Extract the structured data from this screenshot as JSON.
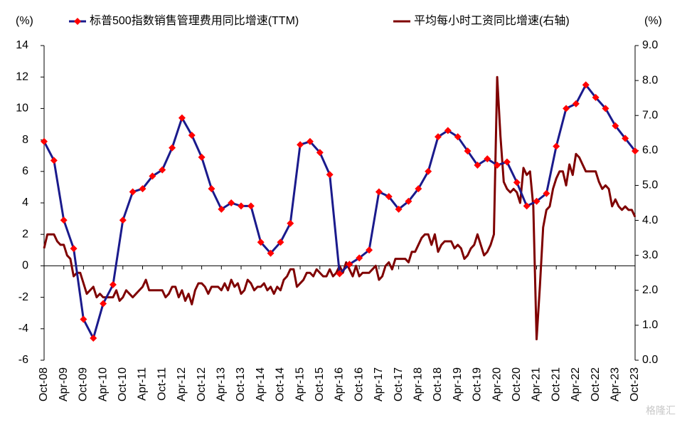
{
  "chart_data": {
    "type": "line",
    "y_label": "(%)",
    "y2_label": "(%)",
    "ylim": [
      -6,
      14
    ],
    "yticks": [
      -6,
      -4,
      -2,
      0,
      2,
      4,
      6,
      8,
      10,
      12,
      14
    ],
    "y2lim": [
      0,
      9
    ],
    "y2ticks": [
      {
        "value": 0,
        "label": "0.0"
      },
      {
        "value": 1,
        "label": "1.0"
      },
      {
        "value": 2,
        "label": "2.0"
      },
      {
        "value": 3,
        "label": "3.0"
      },
      {
        "value": 4,
        "label": "4.0"
      },
      {
        "value": 5,
        "label": "5.0"
      },
      {
        "value": 6,
        "label": "6.0"
      },
      {
        "value": 7,
        "label": "7.0"
      },
      {
        "value": 8,
        "label": "8.0"
      },
      {
        "value": 9,
        "label": "9.0"
      }
    ],
    "xticks": [
      "Oct-08",
      "Apr-09",
      "Oct-09",
      "Apr-10",
      "Oct-10",
      "Apr-11",
      "Oct-11",
      "Apr-12",
      "Oct-12",
      "Apr-13",
      "Oct-13",
      "Apr-14",
      "Oct-14",
      "Apr-15",
      "Oct-15",
      "Apr-16",
      "Oct-16",
      "Apr-17",
      "Oct-17",
      "Apr-18",
      "Oct-18",
      "Apr-19",
      "Oct-19",
      "Apr-20",
      "Oct-20",
      "Apr-21",
      "Oct-21",
      "Apr-22",
      "Oct-22",
      "Apr-23",
      "Oct-23"
    ],
    "legend": "top",
    "watermark": "格隆汇",
    "series": [
      {
        "name": "标普500指数销售管理费用同比增速(TTM)",
        "color": "#1a1a8c",
        "marker_color": "#ff0000",
        "axis": "y",
        "x": [
          "Oct-08",
          "Jan-09",
          "Apr-09",
          "Jul-09",
          "Oct-09",
          "Jan-10",
          "Apr-10",
          "Jul-10",
          "Oct-10",
          "Jan-11",
          "Apr-11",
          "Jul-11",
          "Oct-11",
          "Jan-12",
          "Apr-12",
          "Jul-12",
          "Oct-12",
          "Jan-13",
          "Apr-13",
          "Jul-13",
          "Oct-13",
          "Jan-14",
          "Apr-14",
          "Jul-14",
          "Oct-14",
          "Jan-15",
          "Apr-15",
          "Jul-15",
          "Oct-15",
          "Jan-16",
          "Apr-16",
          "Jul-16",
          "Oct-16",
          "Jan-17",
          "Apr-17",
          "Jul-17",
          "Oct-17",
          "Jan-18",
          "Apr-18",
          "Jul-18",
          "Oct-18",
          "Jan-19",
          "Apr-19",
          "Jul-19",
          "Oct-19",
          "Jan-20",
          "Apr-20",
          "Jul-20",
          "Oct-20",
          "Jan-21",
          "Apr-21",
          "Jul-21",
          "Oct-21",
          "Jan-22",
          "Apr-22",
          "Jul-22",
          "Oct-22",
          "Jan-23",
          "Apr-23",
          "Jul-23",
          "Oct-23"
        ],
        "values": [
          7.9,
          6.7,
          2.9,
          1.1,
          -3.4,
          -4.6,
          -2.4,
          -1.2,
          2.9,
          4.7,
          4.9,
          5.7,
          6.1,
          7.5,
          9.4,
          8.3,
          6.9,
          4.9,
          3.6,
          4.0,
          3.8,
          3.8,
          1.5,
          0.8,
          1.5,
          2.7,
          7.7,
          7.9,
          7.2,
          5.8,
          -0.5,
          0.1,
          0.5,
          1.0,
          4.7,
          4.4,
          3.6,
          4.1,
          4.9,
          6.0,
          8.2,
          8.6,
          8.2,
          7.3,
          6.4,
          6.8,
          6.4,
          6.6,
          5.3,
          3.8,
          4.1,
          4.6,
          7.6,
          10.0,
          10.3,
          11.5,
          10.7,
          10.0,
          8.9,
          8.1,
          7.3
        ]
      },
      {
        "name": "平均每小时工资同比增速(右轴)",
        "color": "#7f0000",
        "axis": "y2",
        "x": [
          "Oct-08",
          "Nov-08",
          "Dec-08",
          "Jan-09",
          "Feb-09",
          "Mar-09",
          "Apr-09",
          "May-09",
          "Jun-09",
          "Jul-09",
          "Aug-09",
          "Sep-09",
          "Oct-09",
          "Nov-09",
          "Dec-09",
          "Jan-10",
          "Feb-10",
          "Mar-10",
          "Apr-10",
          "May-10",
          "Jun-10",
          "Jul-10",
          "Aug-10",
          "Sep-10",
          "Oct-10",
          "Nov-10",
          "Dec-10",
          "Jan-11",
          "Feb-11",
          "Mar-11",
          "Apr-11",
          "May-11",
          "Jun-11",
          "Jul-11",
          "Aug-11",
          "Sep-11",
          "Oct-11",
          "Nov-11",
          "Dec-11",
          "Jan-12",
          "Feb-12",
          "Mar-12",
          "Apr-12",
          "May-12",
          "Jun-12",
          "Jul-12",
          "Aug-12",
          "Sep-12",
          "Oct-12",
          "Nov-12",
          "Dec-12",
          "Jan-13",
          "Feb-13",
          "Mar-13",
          "Apr-13",
          "May-13",
          "Jun-13",
          "Jul-13",
          "Aug-13",
          "Sep-13",
          "Oct-13",
          "Nov-13",
          "Dec-13",
          "Jan-14",
          "Feb-14",
          "Mar-14",
          "Apr-14",
          "May-14",
          "Jun-14",
          "Jul-14",
          "Aug-14",
          "Sep-14",
          "Oct-14",
          "Nov-14",
          "Dec-14",
          "Jan-15",
          "Feb-15",
          "Mar-15",
          "Apr-15",
          "May-15",
          "Jun-15",
          "Jul-15",
          "Aug-15",
          "Sep-15",
          "Oct-15",
          "Nov-15",
          "Dec-15",
          "Jan-16",
          "Feb-16",
          "Mar-16",
          "Apr-16",
          "May-16",
          "Jun-16",
          "Jul-16",
          "Aug-16",
          "Sep-16",
          "Oct-16",
          "Nov-16",
          "Dec-16",
          "Jan-17",
          "Feb-17",
          "Mar-17",
          "Apr-17",
          "May-17",
          "Jun-17",
          "Jul-17",
          "Aug-17",
          "Sep-17",
          "Oct-17",
          "Nov-17",
          "Dec-17",
          "Jan-18",
          "Feb-18",
          "Mar-18",
          "Apr-18",
          "May-18",
          "Jun-18",
          "Jul-18",
          "Aug-18",
          "Sep-18",
          "Oct-18",
          "Nov-18",
          "Dec-18",
          "Jan-19",
          "Feb-19",
          "Mar-19",
          "Apr-19",
          "May-19",
          "Jun-19",
          "Jul-19",
          "Aug-19",
          "Sep-19",
          "Oct-19",
          "Nov-19",
          "Dec-19",
          "Jan-20",
          "Feb-20",
          "Mar-20",
          "Apr-20",
          "May-20",
          "Jun-20",
          "Jul-20",
          "Aug-20",
          "Sep-20",
          "Oct-20",
          "Nov-20",
          "Dec-20",
          "Jan-21",
          "Feb-21",
          "Mar-21",
          "Apr-21",
          "May-21",
          "Jun-21",
          "Jul-21",
          "Aug-21",
          "Sep-21",
          "Oct-21",
          "Nov-21",
          "Dec-21",
          "Jan-22",
          "Feb-22",
          "Mar-22",
          "Apr-22",
          "May-22",
          "Jun-22",
          "Jul-22",
          "Aug-22",
          "Sep-22",
          "Oct-22",
          "Nov-22",
          "Dec-22",
          "Jan-23",
          "Feb-23",
          "Mar-23",
          "Apr-23",
          "May-23",
          "Jun-23",
          "Jul-23",
          "Aug-23",
          "Sep-23",
          "Oct-23"
        ],
        "values": [
          3.2,
          3.6,
          3.6,
          3.6,
          3.4,
          3.3,
          3.3,
          3.0,
          2.9,
          2.4,
          2.5,
          2.5,
          2.2,
          1.9,
          2.0,
          2.1,
          1.8,
          1.9,
          1.8,
          1.8,
          1.8,
          1.8,
          2.0,
          1.7,
          1.8,
          2.0,
          1.9,
          1.8,
          1.9,
          2.0,
          2.1,
          2.3,
          2.0,
          2.0,
          2.0,
          2.0,
          2.0,
          1.8,
          1.9,
          2.1,
          2.1,
          1.8,
          2.0,
          1.7,
          1.9,
          1.6,
          2.0,
          2.2,
          2.2,
          2.1,
          1.9,
          2.1,
          2.1,
          2.1,
          2.0,
          2.2,
          2.0,
          2.3,
          2.1,
          2.2,
          1.9,
          2.0,
          2.3,
          2.2,
          2.0,
          2.1,
          2.1,
          2.2,
          2.0,
          2.1,
          1.9,
          2.1,
          2.0,
          2.3,
          2.4,
          2.6,
          2.6,
          2.1,
          2.2,
          2.3,
          2.5,
          2.5,
          2.4,
          2.6,
          2.5,
          2.4,
          2.4,
          2.6,
          2.4,
          2.5,
          2.7,
          2.5,
          2.8,
          2.6,
          2.4,
          2.7,
          2.4,
          2.5,
          2.5,
          2.5,
          2.6,
          2.7,
          2.3,
          2.4,
          2.7,
          2.8,
          2.6,
          2.9,
          2.9,
          2.9,
          2.9,
          2.8,
          3.1,
          3.1,
          3.3,
          3.5,
          3.6,
          3.6,
          3.3,
          3.6,
          3.1,
          3.3,
          3.4,
          3.4,
          3.4,
          3.2,
          3.3,
          3.2,
          2.9,
          3.0,
          3.2,
          3.3,
          3.6,
          3.3,
          3.0,
          3.1,
          3.3,
          3.6,
          8.1,
          6.4,
          5.1,
          4.9,
          4.8,
          4.9,
          4.8,
          4.5,
          5.5,
          5.3,
          5.4,
          4.4,
          0.6,
          2.1,
          3.8,
          4.3,
          4.4,
          4.9,
          5.2,
          5.4,
          5.4,
          5.0,
          5.6,
          5.3,
          5.9,
          5.8,
          5.6,
          5.4,
          5.4,
          5.4,
          5.4,
          5.1,
          4.9,
          5.0,
          4.9,
          4.4,
          4.6,
          4.4,
          4.3,
          4.4,
          4.3,
          4.3,
          4.1
        ]
      }
    ]
  }
}
